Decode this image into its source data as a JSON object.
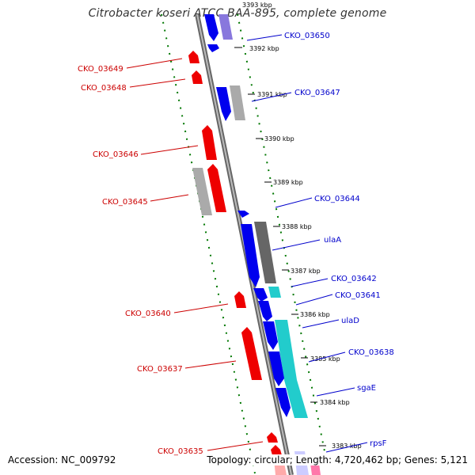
{
  "title": "Citrobacter koseri ATCC BAA-895, complete genome",
  "footer": {
    "accession": "Accession: NC_009792",
    "summary": "Topology: circular; Length: 4,720,462 bp; Genes: 5,121"
  },
  "colors": {
    "forward_cds": "#0000ee",
    "reverse_cds": "#ee0000",
    "pseudo_gray": "#aaaaaa",
    "dark_gray": "#666666",
    "cyan": "#22cccc",
    "backbone": "#888888",
    "guide": "#007700",
    "left_label": "#cc0000",
    "right_label": "#0000cc"
  },
  "ticks": [
    "3393 kbp",
    "3392 kbp",
    "3391 kbp",
    "3390 kbp",
    "3389 kbp",
    "3388 kbp",
    "3387 kbp",
    "3386 kbp",
    "3385 kbp",
    "3384 kbp",
    "3383 kbp"
  ],
  "left_labels": [
    "CKO_03649",
    "CKO_03648",
    "CKO_03646",
    "CKO_03645",
    "CKO_03640",
    "CKO_03637",
    "CKO_03635"
  ],
  "right_labels": [
    "CKO_03650",
    "CKO_03647",
    "CKO_03644",
    "ulaA",
    "CKO_03642",
    "CKO_03641",
    "ulaD",
    "CKO_03638",
    "sgaE",
    "rpsF"
  ]
}
